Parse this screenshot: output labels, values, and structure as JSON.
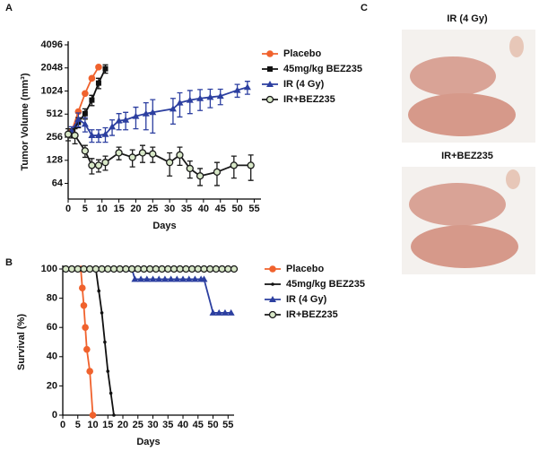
{
  "panel_labels": [
    "A",
    "B",
    "C"
  ],
  "photos": [
    {
      "label": "IR (4 Gy)"
    },
    {
      "label": "IR+BEZ235"
    }
  ],
  "chart_data": [
    {
      "type": "line",
      "x_label": "Days",
      "y_label": "Tumor Volume (mm³)",
      "log_y": true,
      "legend": "upper right",
      "xlim": [
        0,
        57
      ],
      "xticks": [
        0,
        5,
        10,
        15,
        20,
        25,
        30,
        35,
        40,
        45,
        50,
        55
      ],
      "ylim": [
        40,
        4096
      ],
      "yticks": [
        64,
        128,
        256,
        512,
        1024,
        2048,
        4096
      ],
      "series": [
        {
          "name": "Placebo",
          "color": "#f0622d",
          "marker": "circle",
          "x": [
            1,
            3,
            5,
            7,
            9
          ],
          "values": [
            300,
            550,
            950,
            1500,
            2100
          ]
        },
        {
          "name": "45mg/kg BEZ235",
          "color": "#111111",
          "marker": "square",
          "x": [
            1,
            3,
            5,
            7,
            9,
            11
          ],
          "values": [
            290,
            400,
            520,
            780,
            1300,
            2000
          ],
          "errors": [
            40,
            60,
            80,
            120,
            200,
            250
          ]
        },
        {
          "name": "IR (4 Gy)",
          "color": "#2c3fa0",
          "marker": "triangle",
          "x": [
            1,
            3,
            5,
            7,
            9,
            11,
            13,
            15,
            17,
            20,
            23,
            25,
            31,
            33,
            36,
            39,
            42,
            45,
            50,
            53
          ],
          "values": [
            310,
            440,
            380,
            270,
            270,
            280,
            350,
            420,
            430,
            480,
            520,
            540,
            600,
            720,
            780,
            820,
            850,
            880,
            1050,
            1150
          ],
          "errors": [
            40,
            90,
            80,
            50,
            50,
            60,
            80,
            100,
            110,
            150,
            200,
            250,
            220,
            250,
            260,
            250,
            230,
            200,
            200,
            220
          ]
        },
        {
          "name": "IR+BEZ235",
          "color": "#1a1a1a",
          "marker": "circle-open",
          "x": [
            0,
            2,
            5,
            7,
            9,
            11,
            15,
            19,
            22,
            25,
            30,
            33,
            36,
            39,
            44,
            49,
            54
          ],
          "values": [
            280,
            270,
            170,
            110,
            110,
            120,
            160,
            140,
            160,
            155,
            120,
            150,
            100,
            80,
            90,
            110,
            110
          ],
          "errors": [
            50,
            60,
            30,
            25,
            20,
            25,
            30,
            35,
            40,
            35,
            40,
            40,
            25,
            20,
            30,
            35,
            40
          ]
        }
      ]
    },
    {
      "type": "line",
      "x_label": "Days",
      "y_label": "Survival (%)",
      "log_y": false,
      "legend": "upper right",
      "xlim": [
        0,
        57
      ],
      "xticks": [
        0,
        5,
        10,
        15,
        20,
        25,
        30,
        35,
        40,
        45,
        50,
        55
      ],
      "ylim": [
        0,
        100
      ],
      "yticks": [
        0,
        20,
        40,
        60,
        80,
        100
      ],
      "series": [
        {
          "name": "Placebo",
          "color": "#f0622d",
          "marker": "circle",
          "x": [
            6,
            6.5,
            7,
            7.5,
            8,
            9,
            10
          ],
          "values": [
            100,
            87,
            75,
            60,
            45,
            30,
            0
          ]
        },
        {
          "name": "45mg/kg BEZ235",
          "color": "#111111",
          "marker": "dot",
          "x": [
            11,
            12,
            13,
            14,
            15,
            16,
            17
          ],
          "values": [
            100,
            85,
            70,
            50,
            30,
            15,
            0
          ]
        },
        {
          "name": "IR (4 Gy)",
          "color": "#2c3fa0",
          "marker": "triangle",
          "x": [
            23,
            24,
            26,
            28,
            30,
            32,
            34,
            36,
            38,
            40,
            42,
            44,
            46,
            47,
            50,
            52,
            54,
            56
          ],
          "values": [
            100,
            93,
            93,
            93,
            93,
            93,
            93,
            93,
            93,
            93,
            93,
            93,
            93,
            93,
            70,
            70,
            70,
            70
          ]
        },
        {
          "name": "IR+BEZ235",
          "color": "#1a1a1a",
          "marker": "circle-open",
          "x": [
            1,
            3,
            5,
            7,
            9,
            11,
            13,
            15,
            17,
            19,
            21,
            23,
            25,
            27,
            29,
            31,
            33,
            35,
            37,
            39,
            41,
            43,
            45,
            47,
            49,
            51,
            53,
            55,
            57
          ],
          "values": [
            100,
            100,
            100,
            100,
            100,
            100,
            100,
            100,
            100,
            100,
            100,
            100,
            100,
            100,
            100,
            100,
            100,
            100,
            100,
            100,
            100,
            100,
            100,
            100,
            100,
            100,
            100,
            100,
            100
          ]
        }
      ]
    }
  ]
}
